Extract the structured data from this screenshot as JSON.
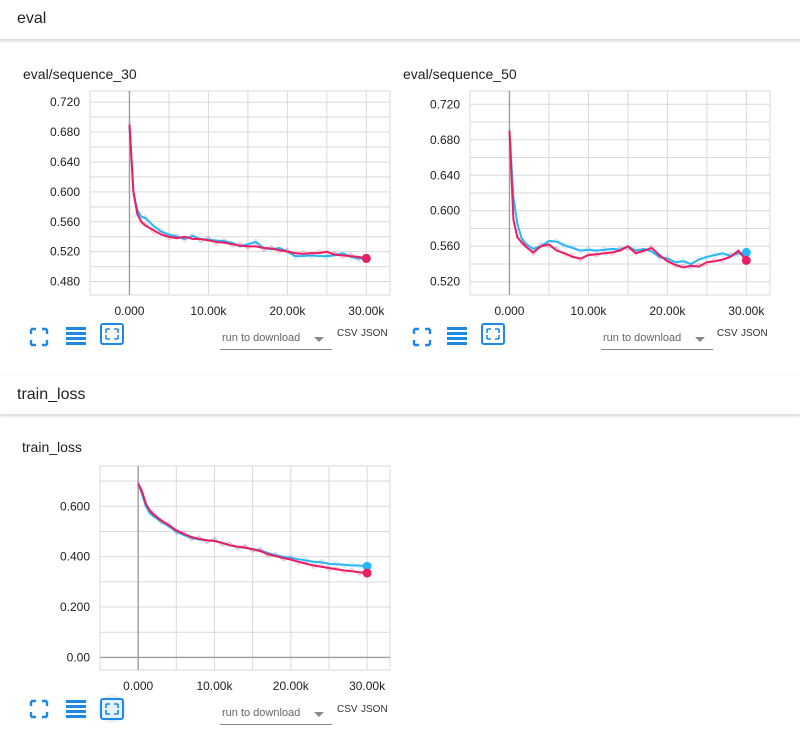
{
  "sections": {
    "eval_title": "eval",
    "train_title": "train_loss"
  },
  "toolbar": {
    "run_placeholder": "run to download",
    "csv_label": "CSV",
    "json_label": "JSON"
  },
  "colors": {
    "series_blue": "#29b6f6",
    "series_pink": "#e91e63",
    "grid": "#d9d9d9",
    "axis": "#9e9e9e",
    "icon": "#1e88e5"
  },
  "chart_data": [
    {
      "type": "line",
      "title": "eval/sequence_30",
      "xlim": [
        -5000,
        33000
      ],
      "ylim": [
        0.462,
        0.735
      ],
      "x_ticks": [
        0,
        10000,
        20000,
        30000
      ],
      "x_tick_labels": [
        "0.000",
        "10.00k",
        "20.00k",
        "30.00k"
      ],
      "y_ticks": [
        0.48,
        0.52,
        0.56,
        0.6,
        0.64,
        0.68,
        0.72
      ],
      "y_tick_labels": [
        "0.480",
        "0.520",
        "0.560",
        "0.600",
        "0.640",
        "0.680",
        "0.720"
      ],
      "x": [
        0,
        500,
        1000,
        1500,
        2000,
        3000,
        4000,
        5000,
        6000,
        7000,
        8000,
        9000,
        10000,
        11000,
        12000,
        13000,
        14000,
        15000,
        16000,
        17000,
        18000,
        19000,
        20000,
        21000,
        22000,
        23000,
        24000,
        25000,
        26000,
        27000,
        28000,
        29000,
        30000
      ],
      "series": [
        {
          "color": "#29b6f6",
          "values": [
            0.69,
            0.6,
            0.575,
            0.567,
            0.565,
            0.555,
            0.547,
            0.543,
            0.54,
            0.537,
            0.541,
            0.537,
            0.536,
            0.535,
            0.534,
            0.532,
            0.527,
            0.53,
            0.533,
            0.525,
            0.523,
            0.525,
            0.52,
            0.514,
            0.514,
            0.515,
            0.514,
            0.514,
            0.515,
            0.518,
            0.513,
            0.511,
            0.511
          ]
        },
        {
          "color": "#e91e63",
          "values": [
            0.69,
            0.6,
            0.57,
            0.56,
            0.555,
            0.549,
            0.543,
            0.54,
            0.538,
            0.54,
            0.537,
            0.537,
            0.535,
            0.533,
            0.532,
            0.53,
            0.528,
            0.527,
            0.527,
            0.525,
            0.524,
            0.522,
            0.52,
            0.518,
            0.517,
            0.518,
            0.518,
            0.52,
            0.516,
            0.515,
            0.514,
            0.513,
            0.511
          ]
        }
      ]
    },
    {
      "type": "line",
      "title": "eval/sequence_50",
      "xlim": [
        -5000,
        33000
      ],
      "ylim": [
        0.505,
        0.735
      ],
      "x_ticks": [
        0,
        10000,
        20000,
        30000
      ],
      "x_tick_labels": [
        "0.000",
        "10.00k",
        "20.00k",
        "30.00k"
      ],
      "y_ticks": [
        0.52,
        0.56,
        0.6,
        0.64,
        0.68,
        0.72
      ],
      "y_tick_labels": [
        "0.520",
        "0.560",
        "0.600",
        "0.640",
        "0.680",
        "0.720"
      ],
      "x": [
        0,
        500,
        1000,
        1500,
        2000,
        3000,
        4000,
        5000,
        6000,
        7000,
        8000,
        9000,
        10000,
        11000,
        12000,
        13000,
        14000,
        15000,
        16000,
        17000,
        18000,
        19000,
        20000,
        21000,
        22000,
        23000,
        24000,
        25000,
        26000,
        27000,
        28000,
        29000,
        30000
      ],
      "series": [
        {
          "color": "#29b6f6",
          "values": [
            0.69,
            0.615,
            0.585,
            0.57,
            0.563,
            0.557,
            0.56,
            0.566,
            0.565,
            0.561,
            0.558,
            0.555,
            0.556,
            0.555,
            0.556,
            0.557,
            0.556,
            0.56,
            0.555,
            0.557,
            0.554,
            0.548,
            0.546,
            0.542,
            0.543,
            0.54,
            0.545,
            0.548,
            0.55,
            0.552,
            0.549,
            0.552,
            0.553
          ]
        },
        {
          "color": "#e91e63",
          "values": [
            0.69,
            0.59,
            0.57,
            0.565,
            0.56,
            0.553,
            0.56,
            0.562,
            0.555,
            0.552,
            0.548,
            0.546,
            0.55,
            0.551,
            0.552,
            0.553,
            0.555,
            0.56,
            0.552,
            0.555,
            0.558,
            0.55,
            0.543,
            0.539,
            0.536,
            0.538,
            0.537,
            0.542,
            0.543,
            0.545,
            0.548,
            0.555,
            0.544
          ]
        }
      ]
    },
    {
      "type": "line",
      "title": "train_loss",
      "xlim": [
        -5000,
        33000
      ],
      "ylim": [
        -0.05,
        0.76
      ],
      "x_ticks": [
        0,
        10000,
        20000,
        30000
      ],
      "x_tick_labels": [
        "0.000",
        "10.00k",
        "20.00k",
        "30.00k"
      ],
      "y_ticks": [
        0.0,
        0.2,
        0.4,
        0.6
      ],
      "y_tick_labels": [
        "0.00",
        "0.200",
        "0.400",
        "0.600"
      ],
      "x": [
        0,
        500,
        1000,
        1500,
        2000,
        3000,
        4000,
        5000,
        6000,
        7000,
        8000,
        9000,
        10000,
        11000,
        12000,
        13000,
        14000,
        15000,
        16000,
        17000,
        18000,
        19000,
        20000,
        21000,
        22000,
        23000,
        24000,
        25000,
        26000,
        27000,
        28000,
        29000,
        30000
      ],
      "series": [
        {
          "color": "#29b6f6",
          "values": [
            0.69,
            0.65,
            0.6,
            0.575,
            0.56,
            0.54,
            0.52,
            0.5,
            0.485,
            0.475,
            0.468,
            0.465,
            0.463,
            0.455,
            0.445,
            0.44,
            0.435,
            0.43,
            0.425,
            0.415,
            0.405,
            0.4,
            0.395,
            0.39,
            0.385,
            0.38,
            0.378,
            0.372,
            0.37,
            0.368,
            0.365,
            0.365,
            0.362
          ]
        },
        {
          "color": "#e91e63",
          "values": [
            0.69,
            0.66,
            0.61,
            0.585,
            0.568,
            0.545,
            0.525,
            0.505,
            0.49,
            0.478,
            0.47,
            0.465,
            0.462,
            0.455,
            0.445,
            0.44,
            0.436,
            0.43,
            0.422,
            0.41,
            0.402,
            0.395,
            0.388,
            0.38,
            0.372,
            0.365,
            0.36,
            0.355,
            0.35,
            0.345,
            0.342,
            0.338,
            0.335
          ]
        }
      ]
    }
  ]
}
